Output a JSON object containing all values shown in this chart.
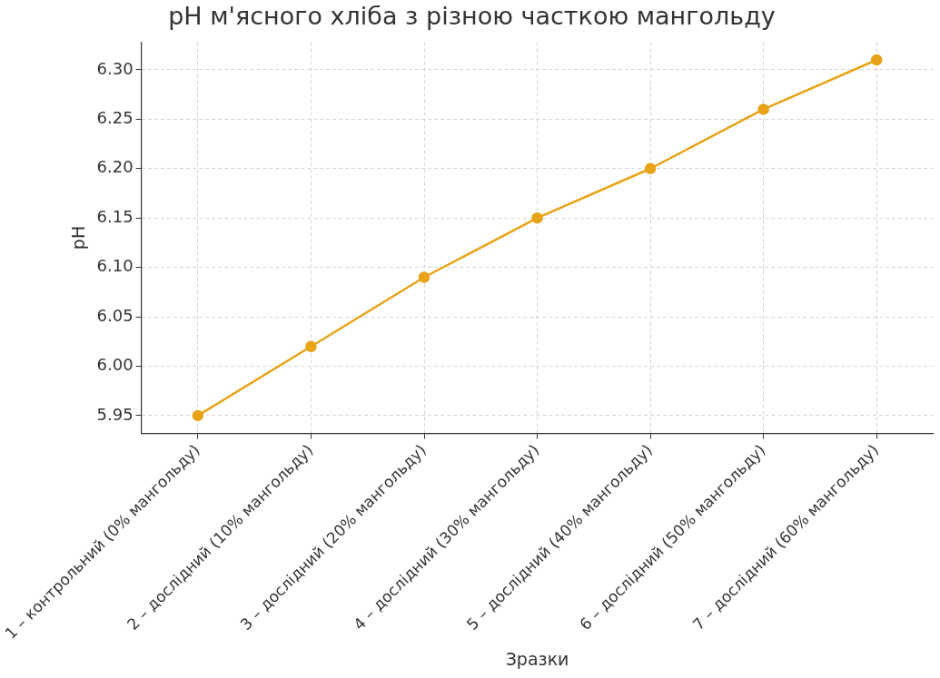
{
  "chart_data": {
    "type": "line",
    "title": "pH м'ясного хліба з різною часткою мангольду",
    "xlabel": "Зразки",
    "ylabel": "pH",
    "categories": [
      "1 – контрольний (0% мангольду)",
      "2 – дослідний (10% мангольду)",
      "3 – дослідний (20% мангольду)",
      "4 – дослідний (30% мангольду)",
      "5 – дослідний (40% мангольду)",
      "6 – дослідний (50% мангольду)",
      "7 – дослідний (60% мангольду)"
    ],
    "series": [
      {
        "color": "#e8a317",
        "values": [
          5.95,
          6.02,
          6.09,
          6.15,
          6.2,
          6.26,
          6.31
        ]
      }
    ],
    "ylim": [
      5.932,
      6.328
    ],
    "yticks": [
      {
        "value": 5.95,
        "label": "5.95"
      },
      {
        "value": 6.0,
        "label": "6.00"
      },
      {
        "value": 6.05,
        "label": "6.05"
      },
      {
        "value": 6.1,
        "label": "6.10"
      },
      {
        "value": 6.15,
        "label": "6.15"
      },
      {
        "value": 6.2,
        "label": "6.20"
      },
      {
        "value": 6.25,
        "label": "6.25"
      },
      {
        "value": 6.3,
        "label": "6.30"
      }
    ],
    "grid": true,
    "legend": false,
    "marker": "circle",
    "line_style": "solid"
  }
}
